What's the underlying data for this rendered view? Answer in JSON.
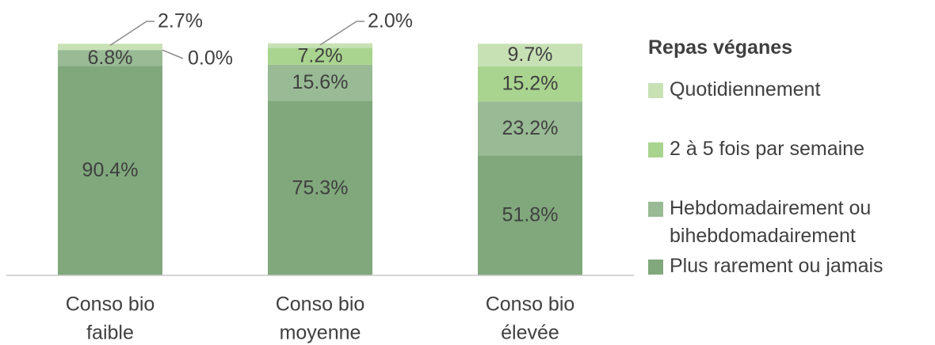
{
  "chart_data": {
    "type": "stacked-bar",
    "categories": [
      [
        "Conso bio",
        "faible"
      ],
      [
        "Conso bio",
        "moyenne"
      ],
      [
        "Conso bio",
        "élevée"
      ]
    ],
    "legend_title": "Repas véganes",
    "series": [
      {
        "name": "Plus rarement ou jamais",
        "color": "#80a87c",
        "values": [
          90.4,
          75.3,
          51.8
        ],
        "value_labels": [
          "90.4%",
          "75.3%",
          "51.8%"
        ]
      },
      {
        "name": "Hebdomadairement ou bihebdomadairement",
        "color": "#98ba94",
        "values": [
          6.8,
          15.6,
          23.2
        ],
        "value_labels": [
          "6.8%",
          "15.6%",
          "23.2%"
        ]
      },
      {
        "name": "2 à 5 fois par semaine",
        "color": "#a9d48f",
        "values": [
          0.0,
          7.2,
          15.2
        ],
        "value_labels": [
          "0.0%",
          "7.2%",
          "15.2%"
        ]
      },
      {
        "name": "Quotidiennement",
        "color": "#c7e1b5",
        "values": [
          2.7,
          2.0,
          9.7
        ],
        "value_labels": [
          "2.7%",
          "2.0%",
          "9.7%"
        ]
      }
    ],
    "ylim": [
      0,
      100
    ],
    "legend": "right"
  }
}
